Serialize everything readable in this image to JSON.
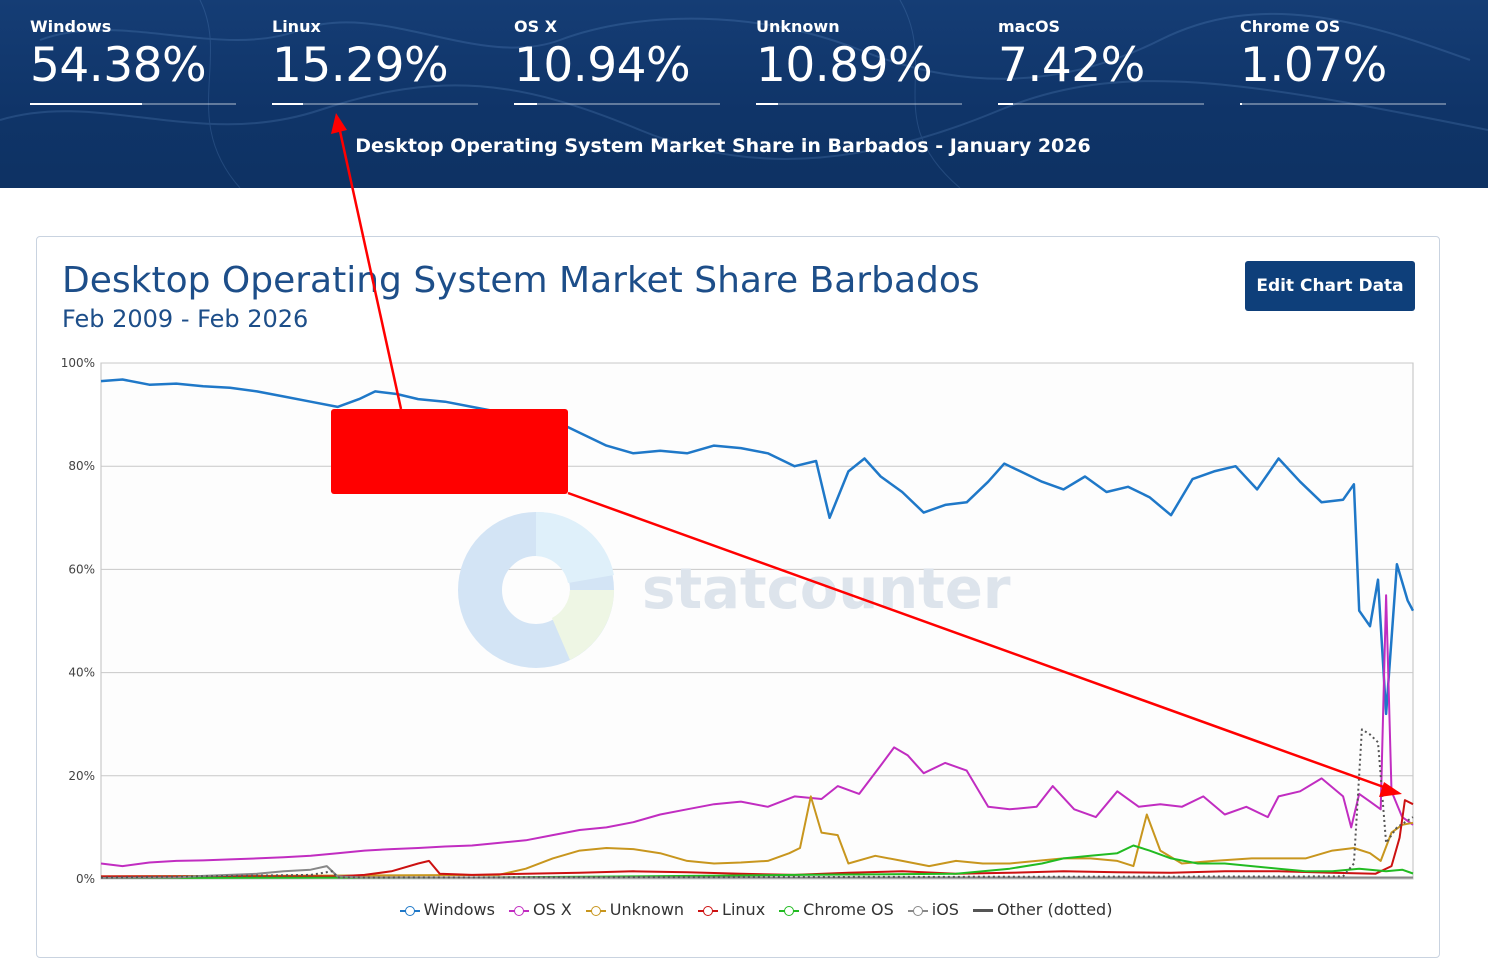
{
  "banner": {
    "title": "Desktop Operating System Market Share in Barbados - January 2026",
    "stats": [
      {
        "label": "Windows",
        "value": "54.38%",
        "share": 0.5438
      },
      {
        "label": "Linux",
        "value": "15.29%",
        "share": 0.1529
      },
      {
        "label": "OS X",
        "value": "10.94%",
        "share": 0.1094
      },
      {
        "label": "Unknown",
        "value": "10.89%",
        "share": 0.1089
      },
      {
        "label": "macOS",
        "value": "7.42%",
        "share": 0.0742
      },
      {
        "label": "Chrome OS",
        "value": "1.07%",
        "share": 0.0107
      }
    ]
  },
  "card": {
    "title": "Desktop Operating System Market Share Barbados",
    "range": "Feb 2009 - Feb 2026",
    "edit_button": "Edit Chart Data",
    "watermark": "statcounter"
  },
  "colors": {
    "banner": "#0f3468",
    "accent_button": "#0e3f7a",
    "annotation": "#ff0000"
  },
  "chart_data": {
    "type": "line",
    "title": "Desktop Operating System Market Share Barbados",
    "subtitle": "Feb 2009 - Feb 2026",
    "x_start": "2009-02",
    "x_end": "2026-02",
    "ylim": [
      0,
      100
    ],
    "yticks": [
      "0%",
      "20%",
      "40%",
      "60%",
      "80%",
      "100%"
    ],
    "grid": true,
    "legend_position": "bottom",
    "series": [
      {
        "name": "Windows",
        "color": "#1f78c8",
        "dotted": false,
        "points": [
          [
            2009.1,
            96.5
          ],
          [
            2009.5,
            96.8
          ],
          [
            2010.0,
            95.8
          ],
          [
            2010.5,
            96.0
          ],
          [
            2011.0,
            95.5
          ],
          [
            2011.5,
            95.2
          ],
          [
            2012.0,
            94.5
          ],
          [
            2012.5,
            93.5
          ],
          [
            2013.0,
            92.5
          ],
          [
            2013.5,
            91.5
          ],
          [
            2013.9,
            93.0
          ],
          [
            2014.2,
            94.5
          ],
          [
            2014.6,
            94.0
          ],
          [
            2015.0,
            93.0
          ],
          [
            2015.5,
            92.5
          ],
          [
            2016.0,
            91.5
          ],
          [
            2016.5,
            90.5
          ],
          [
            2017.0,
            90.0
          ],
          [
            2017.5,
            89.0
          ],
          [
            2018.0,
            86.5
          ],
          [
            2018.5,
            84.0
          ],
          [
            2019.0,
            82.5
          ],
          [
            2019.5,
            83.0
          ],
          [
            2020.0,
            82.5
          ],
          [
            2020.5,
            84.0
          ],
          [
            2021.0,
            83.5
          ],
          [
            2021.5,
            82.5
          ],
          [
            2022.0,
            80.0
          ],
          [
            2022.4,
            81.0
          ],
          [
            2022.65,
            70.0
          ],
          [
            2023.0,
            79.0
          ],
          [
            2023.3,
            81.5
          ],
          [
            2023.6,
            78.0
          ],
          [
            2024.0,
            75.0
          ],
          [
            2024.4,
            71.0
          ],
          [
            2024.8,
            72.5
          ],
          [
            2025.2,
            73.0
          ],
          [
            2025.6,
            77.0
          ],
          [
            2025.9,
            80.5
          ],
          [
            2026.2,
            79.0
          ],
          [
            2026.6,
            77.0
          ],
          [
            2027.0,
            75.5
          ],
          [
            2027.4,
            78.0
          ],
          [
            2027.8,
            75.0
          ],
          [
            2028.2,
            76.0
          ],
          [
            2028.6,
            74.0
          ],
          [
            2029.0,
            70.5
          ],
          [
            2029.4,
            77.5
          ],
          [
            2029.8,
            79.0
          ],
          [
            2030.2,
            80.0
          ],
          [
            2030.6,
            75.5
          ],
          [
            2031.0,
            81.5
          ],
          [
            2031.4,
            77.0
          ],
          [
            2031.8,
            73.0
          ],
          [
            2032.2,
            73.5
          ],
          [
            2032.4,
            76.5
          ],
          [
            2032.5,
            52.0
          ],
          [
            2032.7,
            49.0
          ],
          [
            2032.85,
            58.0
          ],
          [
            2033.0,
            32.0
          ],
          [
            2033.2,
            61.0
          ],
          [
            2033.4,
            54.0
          ],
          [
            2033.5,
            52.0
          ]
        ]
      },
      {
        "name": "OS X",
        "color": "#c12dc1",
        "dotted": false,
        "points": [
          [
            2009.1,
            3.0
          ],
          [
            2009.5,
            2.5
          ],
          [
            2010.0,
            3.2
          ],
          [
            2010.5,
            3.5
          ],
          [
            2011.0,
            3.6
          ],
          [
            2011.5,
            3.8
          ],
          [
            2012.0,
            4.0
          ],
          [
            2012.5,
            4.2
          ],
          [
            2013.0,
            4.5
          ],
          [
            2013.5,
            5.0
          ],
          [
            2014.0,
            5.5
          ],
          [
            2014.5,
            5.8
          ],
          [
            2015.0,
            6.0
          ],
          [
            2015.5,
            6.3
          ],
          [
            2016.0,
            6.5
          ],
          [
            2016.5,
            7.0
          ],
          [
            2017.0,
            7.5
          ],
          [
            2017.5,
            8.5
          ],
          [
            2018.0,
            9.5
          ],
          [
            2018.5,
            10.0
          ],
          [
            2019.0,
            11.0
          ],
          [
            2019.5,
            12.5
          ],
          [
            2020.0,
            13.5
          ],
          [
            2020.5,
            14.5
          ],
          [
            2021.0,
            15.0
          ],
          [
            2021.5,
            14.0
          ],
          [
            2022.0,
            16.0
          ],
          [
            2022.5,
            15.5
          ],
          [
            2022.8,
            18.0
          ],
          [
            2023.2,
            16.5
          ],
          [
            2023.6,
            22.0
          ],
          [
            2023.85,
            25.5
          ],
          [
            2024.1,
            24.0
          ],
          [
            2024.4,
            20.5
          ],
          [
            2024.8,
            22.5
          ],
          [
            2025.2,
            21.0
          ],
          [
            2025.6,
            14.0
          ],
          [
            2026.0,
            13.5
          ],
          [
            2026.5,
            14.0
          ],
          [
            2026.8,
            18.0
          ],
          [
            2027.2,
            13.5
          ],
          [
            2027.6,
            12.0
          ],
          [
            2028.0,
            17.0
          ],
          [
            2028.4,
            14.0
          ],
          [
            2028.8,
            14.5
          ],
          [
            2029.2,
            14.0
          ],
          [
            2029.6,
            16.0
          ],
          [
            2030.0,
            12.5
          ],
          [
            2030.4,
            14.0
          ],
          [
            2030.8,
            12.0
          ],
          [
            2031.0,
            16.0
          ],
          [
            2031.4,
            17.0
          ],
          [
            2031.8,
            19.5
          ],
          [
            2032.2,
            16.0
          ],
          [
            2032.35,
            10.0
          ],
          [
            2032.5,
            16.5
          ],
          [
            2032.7,
            15.0
          ],
          [
            2032.9,
            13.5
          ],
          [
            2033.0,
            55.0
          ],
          [
            2033.1,
            17.0
          ],
          [
            2033.3,
            12.0
          ],
          [
            2033.5,
            10.5
          ]
        ]
      },
      {
        "name": "Unknown",
        "color": "#c8961e",
        "dotted": false,
        "points": [
          [
            2009.1,
            0.5
          ],
          [
            2016.5,
            0.8
          ],
          [
            2017.0,
            2.0
          ],
          [
            2017.5,
            4.0
          ],
          [
            2018.0,
            5.5
          ],
          [
            2018.5,
            6.0
          ],
          [
            2019.0,
            5.8
          ],
          [
            2019.5,
            5.0
          ],
          [
            2020.0,
            3.5
          ],
          [
            2020.5,
            3.0
          ],
          [
            2021.0,
            3.2
          ],
          [
            2021.5,
            3.5
          ],
          [
            2021.9,
            5.0
          ],
          [
            2022.1,
            6.0
          ],
          [
            2022.3,
            16.0
          ],
          [
            2022.5,
            9.0
          ],
          [
            2022.8,
            8.5
          ],
          [
            2023.0,
            3.0
          ],
          [
            2023.5,
            4.5
          ],
          [
            2024.0,
            3.5
          ],
          [
            2024.5,
            2.5
          ],
          [
            2025.0,
            3.5
          ],
          [
            2025.5,
            3.0
          ],
          [
            2026.0,
            3.0
          ],
          [
            2026.5,
            3.5
          ],
          [
            2027.0,
            4.0
          ],
          [
            2027.5,
            4.0
          ],
          [
            2028.0,
            3.5
          ],
          [
            2028.3,
            2.5
          ],
          [
            2028.55,
            12.5
          ],
          [
            2028.8,
            5.5
          ],
          [
            2029.2,
            3.0
          ],
          [
            2029.8,
            3.5
          ],
          [
            2030.5,
            4.0
          ],
          [
            2031.0,
            4.0
          ],
          [
            2031.5,
            4.0
          ],
          [
            2032.0,
            5.5
          ],
          [
            2032.4,
            6.0
          ],
          [
            2032.7,
            5.0
          ],
          [
            2032.9,
            3.5
          ],
          [
            2033.1,
            9.0
          ],
          [
            2033.3,
            10.5
          ],
          [
            2033.5,
            10.9
          ]
        ]
      },
      {
        "name": "Linux",
        "color": "#cc1111",
        "dotted": false,
        "points": [
          [
            2009.1,
            0.5
          ],
          [
            2013.5,
            0.5
          ],
          [
            2014.0,
            0.8
          ],
          [
            2014.5,
            1.5
          ],
          [
            2015.0,
            3.0
          ],
          [
            2015.2,
            3.5
          ],
          [
            2015.4,
            1.0
          ],
          [
            2016.0,
            0.8
          ],
          [
            2017.0,
            1.0
          ],
          [
            2018.0,
            1.2
          ],
          [
            2019.0,
            1.5
          ],
          [
            2020.0,
            1.3
          ],
          [
            2021.0,
            1.0
          ],
          [
            2022.0,
            0.8
          ],
          [
            2023.0,
            1.2
          ],
          [
            2024.0,
            1.5
          ],
          [
            2025.0,
            1.0
          ],
          [
            2026.0,
            1.2
          ],
          [
            2027.0,
            1.5
          ],
          [
            2028.0,
            1.3
          ],
          [
            2029.0,
            1.2
          ],
          [
            2030.0,
            1.5
          ],
          [
            2031.0,
            1.5
          ],
          [
            2032.0,
            1.2
          ],
          [
            2032.8,
            1.0
          ],
          [
            2033.1,
            2.5
          ],
          [
            2033.25,
            8.0
          ],
          [
            2033.35,
            15.3
          ],
          [
            2033.5,
            14.5
          ]
        ]
      },
      {
        "name": "Chrome OS",
        "color": "#22bb22",
        "dotted": false,
        "points": [
          [
            2009.1,
            0.2
          ],
          [
            2016.0,
            0.3
          ],
          [
            2019.0,
            0.5
          ],
          [
            2022.0,
            0.8
          ],
          [
            2025.0,
            1.0
          ],
          [
            2026.0,
            2.0
          ],
          [
            2026.6,
            3.0
          ],
          [
            2027.0,
            4.0
          ],
          [
            2027.5,
            4.5
          ],
          [
            2028.0,
            5.0
          ],
          [
            2028.3,
            6.5
          ],
          [
            2028.6,
            5.5
          ],
          [
            2029.0,
            4.0
          ],
          [
            2029.5,
            3.0
          ],
          [
            2030.0,
            3.0
          ],
          [
            2030.5,
            2.5
          ],
          [
            2031.0,
            2.0
          ],
          [
            2031.5,
            1.5
          ],
          [
            2032.0,
            1.5
          ],
          [
            2032.5,
            2.0
          ],
          [
            2033.0,
            1.5
          ],
          [
            2033.3,
            1.8
          ],
          [
            2033.5,
            1.07
          ]
        ]
      },
      {
        "name": "iOS",
        "color": "#888888",
        "dotted": false,
        "points": [
          [
            2009.1,
            0.2
          ],
          [
            2010.5,
            0.3
          ],
          [
            2011.0,
            0.6
          ],
          [
            2012.0,
            1.0
          ],
          [
            2012.5,
            1.5
          ],
          [
            2013.0,
            1.8
          ],
          [
            2013.3,
            2.5
          ],
          [
            2013.5,
            0.5
          ],
          [
            2014.0,
            0.3
          ],
          [
            2033.5,
            0.3
          ]
        ]
      },
      {
        "name": "Other (dotted)",
        "color": "#555555",
        "dotted": true,
        "points": [
          [
            2009.1,
            0.3
          ],
          [
            2013.0,
            0.8
          ],
          [
            2013.4,
            1.5
          ],
          [
            2013.5,
            0.3
          ],
          [
            2032.2,
            0.5
          ],
          [
            2032.4,
            3.0
          ],
          [
            2032.55,
            29.0
          ],
          [
            2032.7,
            28.0
          ],
          [
            2032.85,
            26.5
          ],
          [
            2033.0,
            7.0
          ],
          [
            2033.2,
            10.0
          ],
          [
            2033.5,
            12.0
          ]
        ]
      }
    ]
  }
}
